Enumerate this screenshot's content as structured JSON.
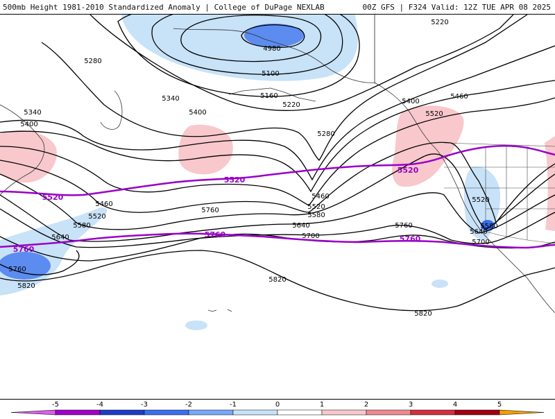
{
  "header": {
    "title": "500mb Height 1981-2010 Standardized Anomaly | College of DuPage NEXLAB",
    "run_info": "00Z GFS | F324 Valid: 12Z TUE APR 08 2025"
  },
  "colors": {
    "contour": "#000000",
    "highlight_contour": "#9a00c8",
    "neg1": "#c8e2f8",
    "neg2": "#5c8cf0",
    "pos1": "#f8c8cc",
    "pos2": "#e88088"
  },
  "contour_labels": [
    "4980",
    "5100",
    "5160",
    "5220",
    "5220",
    "5280",
    "5280",
    "5340",
    "5340",
    "5400",
    "5400",
    "5400",
    "5460",
    "5460",
    "5460",
    "5520",
    "5520",
    "5520",
    "5520",
    "5580",
    "5580",
    "5580",
    "5640",
    "5640",
    "5640",
    "5700",
    "5700",
    "5760",
    "5760",
    "5760",
    "5820",
    "5820",
    "5820"
  ],
  "highlight_labels": [
    "5520",
    "5520",
    "5520",
    "5760",
    "5760",
    "5760"
  ],
  "legend": {
    "ticks": [
      "-5",
      "-4",
      "-3",
      "-2",
      "-1",
      "0",
      "1",
      "2",
      "3",
      "4",
      "5"
    ],
    "bins": [
      {
        "color": "#a000c8"
      },
      {
        "color": "#1e3cc8"
      },
      {
        "color": "#3c6ef0"
      },
      {
        "color": "#78a8f8"
      },
      {
        "color": "#c8e2f8"
      },
      {
        "color": "#ffffff"
      },
      {
        "color": "#f8c8cc"
      },
      {
        "color": "#f08890"
      },
      {
        "color": "#d03040"
      },
      {
        "color": "#a00010"
      },
      {
        "color": "#f0a000"
      }
    ]
  }
}
